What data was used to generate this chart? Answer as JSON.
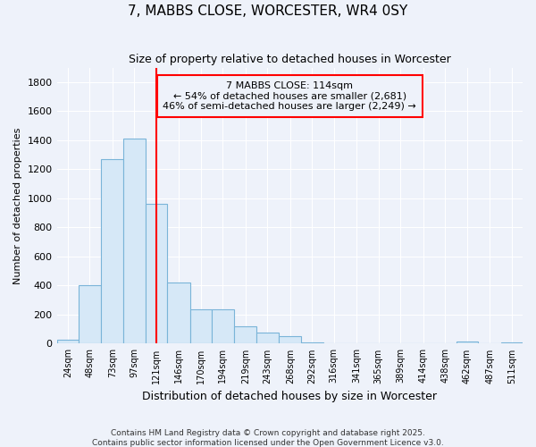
{
  "title": "7, MABBS CLOSE, WORCESTER, WR4 0SY",
  "subtitle": "Size of property relative to detached houses in Worcester",
  "xlabel": "Distribution of detached houses by size in Worcester",
  "ylabel": "Number of detached properties",
  "bar_color": "#d6e8f7",
  "bar_edge_color": "#7ab4d8",
  "bg_color": "#eef2fa",
  "grid_color": "#ffffff",
  "annotation_box_text": "7 MABBS CLOSE: 114sqm\n← 54% of detached houses are smaller (2,681)\n46% of semi-detached houses are larger (2,249) →",
  "vline_x": 121,
  "vline_color": "red",
  "footer_line1": "Contains HM Land Registry data © Crown copyright and database right 2025.",
  "footer_line2": "Contains public sector information licensed under the Open Government Licence v3.0.",
  "bin_edges": [
    12,
    36,
    60,
    85,
    109,
    133,
    158,
    182,
    206,
    231,
    255,
    280,
    304,
    328,
    353,
    377,
    401,
    426,
    450,
    474,
    499,
    523
  ],
  "tick_positions": [
    24,
    48,
    73,
    97,
    121,
    146,
    170,
    194,
    219,
    243,
    268,
    292,
    316,
    341,
    365,
    389,
    414,
    438,
    462,
    487,
    511
  ],
  "tick_labels": [
    "24sqm",
    "48sqm",
    "73sqm",
    "97sqm",
    "121sqm",
    "146sqm",
    "170sqm",
    "194sqm",
    "219sqm",
    "243sqm",
    "268sqm",
    "292sqm",
    "316sqm",
    "341sqm",
    "365sqm",
    "389sqm",
    "414sqm",
    "438sqm",
    "462sqm",
    "487sqm",
    "511sqm"
  ],
  "values": [
    25,
    400,
    1270,
    1410,
    960,
    420,
    235,
    235,
    120,
    75,
    50,
    10,
    2,
    2,
    2,
    2,
    2,
    2,
    15,
    2,
    8
  ],
  "ylim": [
    0,
    1900
  ],
  "yticks": [
    0,
    200,
    400,
    600,
    800,
    1000,
    1200,
    1400,
    1600,
    1800
  ]
}
